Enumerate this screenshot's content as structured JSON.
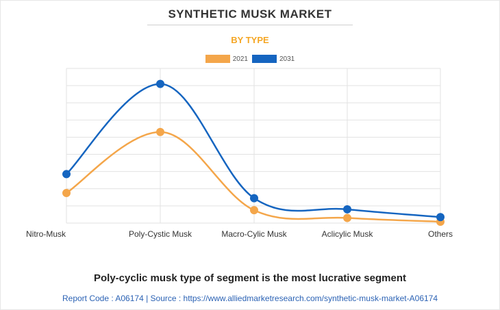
{
  "title": "SYNTHETIC MUSK MARKET",
  "subtitle": "BY TYPE",
  "colors": {
    "subtitle": "#f5a623",
    "series_2021": "#f4a64a",
    "series_2031": "#1565c0",
    "grid": "#e2e2e2"
  },
  "chart_data": {
    "type": "line",
    "categories": [
      "Nitro-Musk",
      "Poly-Cystic Musk",
      "Macro-Cylic Musk",
      "Aclicylic Musk",
      "Others"
    ],
    "series": [
      {
        "name": "2021",
        "values": [
          1.75,
          5.3,
          0.75,
          0.3,
          0.08
        ]
      },
      {
        "name": "2031",
        "values": [
          2.85,
          8.1,
          1.45,
          0.8,
          0.35
        ]
      }
    ],
    "ylim": [
      0,
      9
    ],
    "grid": true,
    "legend": "top-center",
    "smooth": true
  },
  "footer": {
    "headline": "Poly-cyclic musk type of segment is the most lucrative segment",
    "report": "Report Code : A06174  |  Source : https://www.alliedmarketresearch.com/synthetic-musk-market-A06174"
  }
}
